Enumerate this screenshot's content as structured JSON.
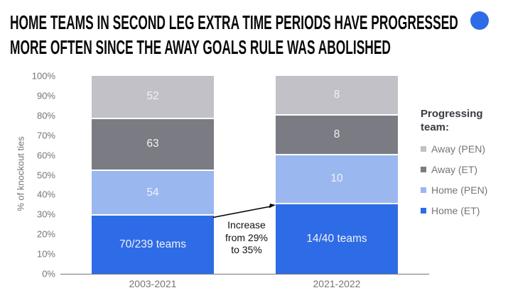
{
  "header": {
    "title_line1": "HOME TEAMS IN SECOND LEG EXTRA TIME PERIODS HAVE PROGRESSED",
    "title_line2": "MORE OFTEN SINCE THE AWAY GOALS RULE WAS ABOLISHED",
    "accent_color": "#2E6BE6"
  },
  "chart_data": {
    "type": "bar",
    "stacked": true,
    "unit": "% of knockout ties",
    "categories": [
      "2003-2021",
      "2021-2022"
    ],
    "series": [
      {
        "name": "Home (ET)",
        "color": "#2E6BE6",
        "labels": [
          "70/239 teams",
          "14/40 teams"
        ],
        "values_pct": [
          29.3,
          35
        ]
      },
      {
        "name": "Home (PEN)",
        "color": "#9BB7F0",
        "labels": [
          "54",
          "10"
        ],
        "values_pct": [
          22.6,
          25
        ]
      },
      {
        "name": "Away (ET)",
        "color": "#7B7B84",
        "labels": [
          "63",
          "8"
        ],
        "values_pct": [
          26.4,
          20
        ]
      },
      {
        "name": "Away (PEN)",
        "color": "#C1C1C7",
        "labels": [
          "52",
          "8"
        ],
        "values_pct": [
          21.7,
          20
        ]
      }
    ],
    "ylabel": "% of knockout ties",
    "ylim": [
      0,
      100
    ],
    "y_ticks": [
      "100%",
      "90%",
      "80%",
      "70%",
      "60%",
      "50%",
      "40%",
      "30%",
      "20%",
      "10%",
      "0%"
    ],
    "grid": false,
    "legend": {
      "position": "right",
      "title": "Progressing team:",
      "items": [
        {
          "label": "Away (PEN)",
          "color": "#C1C1C7"
        },
        {
          "label": "Away (ET)",
          "color": "#7B7B84"
        },
        {
          "label": "Home (PEN)",
          "color": "#9BB7F0"
        },
        {
          "label": "Home (ET)",
          "color": "#2E6BE6"
        }
      ]
    },
    "annotation": {
      "line1": "Increase",
      "line2": "from 29%",
      "line3": "to 35%"
    }
  }
}
